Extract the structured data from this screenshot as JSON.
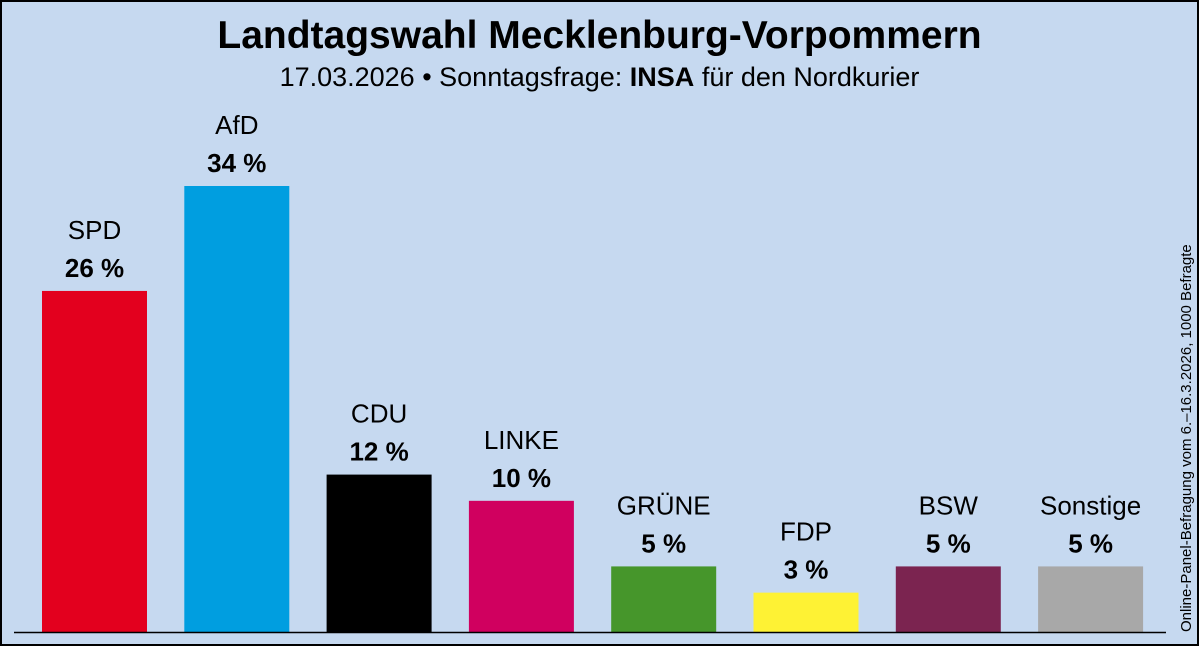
{
  "title": "Landtagswahl Mecklenburg-Vorpommern",
  "subtitle": {
    "prefix": "17.03.2026 • Sonntagsfrage: ",
    "institute": "INSA",
    "suffix": " für den Nordkurier"
  },
  "side_note": "Online-Panel-Befragung vom 6.–16.3.2026, 1000 Befragte",
  "chart_data": {
    "type": "bar",
    "unit": "%",
    "categories": [
      "SPD",
      "AfD",
      "CDU",
      "LINKE",
      "GRÜNE",
      "FDP",
      "BSW",
      "Sonstige"
    ],
    "values": [
      26,
      34,
      12,
      10,
      5,
      3,
      5,
      5
    ],
    "value_labels": [
      "26 %",
      "34 %",
      "12 %",
      "10 %",
      "5 %",
      "3 %",
      "5 %",
      "5 %"
    ],
    "colors": [
      "#e3001e",
      "#009ee0",
      "#000000",
      "#d0005f",
      "#46962b",
      "#fef234",
      "#7b2450",
      "#a8a8a8"
    ],
    "ylim": [
      0,
      34
    ],
    "grid": false,
    "legend": "none"
  }
}
